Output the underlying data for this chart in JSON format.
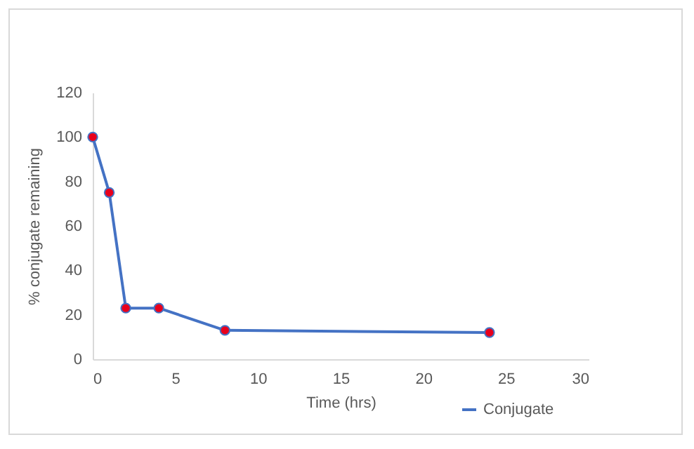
{
  "chart_data": {
    "type": "line",
    "xlabel": "Time (hrs)",
    "ylabel": "% conjugate remaining",
    "x": [
      0,
      1,
      2,
      4,
      8,
      24
    ],
    "series": [
      {
        "name": "Conjugate",
        "color": "#4472c4",
        "values": [
          100,
          75,
          23,
          23,
          13,
          12
        ]
      }
    ],
    "marker": "circle",
    "xlim": [
      0,
      30
    ],
    "xticks": [
      0,
      5,
      10,
      15,
      20,
      25,
      30
    ],
    "ylim": [
      0,
      120
    ],
    "yticks": [
      0,
      20,
      40,
      60,
      80,
      100,
      120
    ],
    "grid": false,
    "legend": "bottom right"
  }
}
